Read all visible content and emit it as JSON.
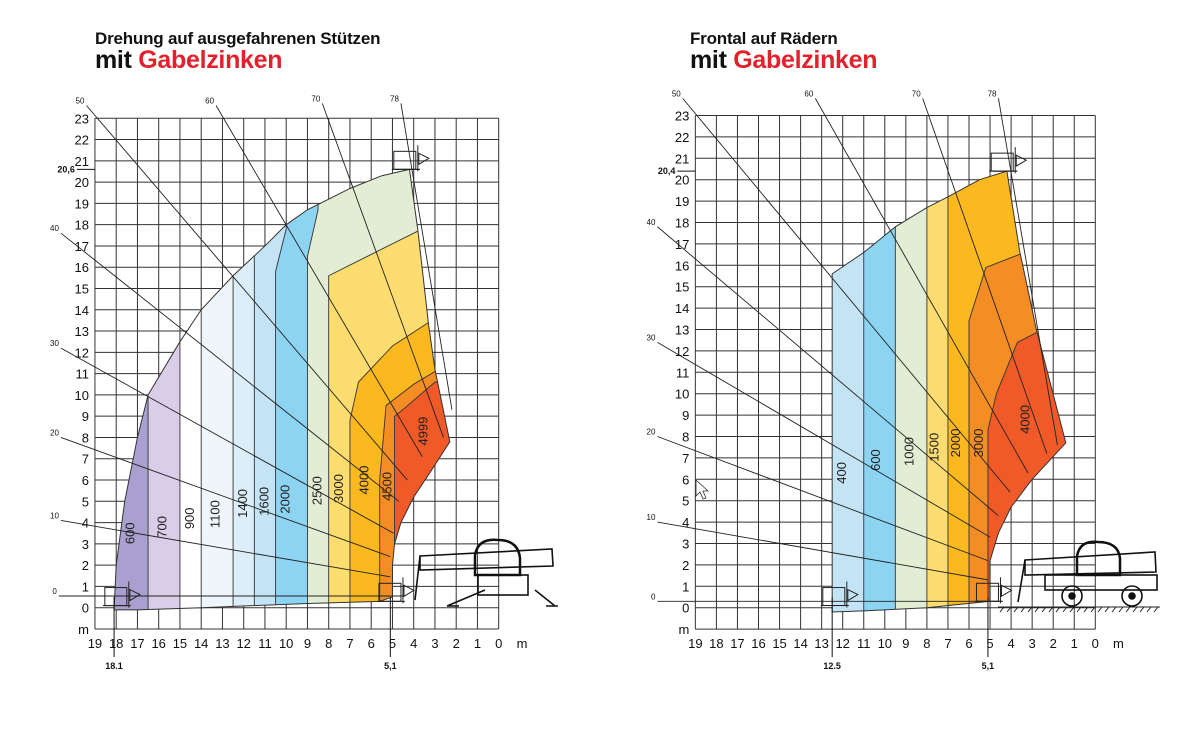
{
  "colors": {
    "highlight": "#e3212c",
    "grid": "#333333",
    "text": "#111111"
  },
  "charts": [
    {
      "title": "Drehung auf ausgefahrenen Stützen",
      "subtitle_prefix": "mit",
      "subtitle_highlight": "Gabelzinken",
      "type": "load-chart",
      "unit": "m",
      "x_ticks": [
        "19",
        "18",
        "17",
        "16",
        "15",
        "14",
        "13",
        "12",
        "11",
        "10",
        "9",
        "8",
        "7",
        "6",
        "5",
        "4",
        "3",
        "2",
        "1",
        "0"
      ],
      "y_ticks": [
        "0",
        "1",
        "2",
        "3",
        "4",
        "5",
        "6",
        "7",
        "8",
        "9",
        "10",
        "11",
        "12",
        "13",
        "14",
        "15",
        "16",
        "17",
        "18",
        "19",
        "20",
        "21",
        "22",
        "23"
      ],
      "xlim": [
        19,
        0
      ],
      "ylim": [
        -1,
        23
      ],
      "max_height": 20.6,
      "max_height_label": "20,6",
      "max_reach": 18.1,
      "max_reach_label": "18.1",
      "min_reach": 5.1,
      "min_reach_label": "5,1",
      "boom_angles": [
        "0",
        "10",
        "20",
        "30",
        "40",
        "50",
        "60",
        "70",
        "78"
      ],
      "envelope": [
        [
          18.1,
          -0.1
        ],
        [
          18.0,
          2
        ],
        [
          17.6,
          5
        ],
        [
          17.0,
          8
        ],
        [
          16.5,
          10
        ],
        [
          15.0,
          12.5
        ],
        [
          14.0,
          14
        ],
        [
          12.5,
          15.6
        ],
        [
          11.0,
          17
        ],
        [
          10.0,
          18
        ],
        [
          9.0,
          18.7
        ],
        [
          7.0,
          19.7
        ],
        [
          5.5,
          20.3
        ],
        [
          4.2,
          20.6
        ],
        [
          3.8,
          17.7
        ],
        [
          3.3,
          13.3
        ],
        [
          3.0,
          11.2
        ],
        [
          2.3,
          7.8
        ],
        [
          3.2,
          6.4
        ],
        [
          4.0,
          5.2
        ],
        [
          4.6,
          4.0
        ],
        [
          4.9,
          3.0
        ],
        [
          5.0,
          2.0
        ],
        [
          5.0,
          0.5
        ],
        [
          5.6,
          0.3
        ],
        [
          9.0,
          0.2
        ],
        [
          14.0,
          0.0
        ],
        [
          17.0,
          -0.1
        ]
      ],
      "zones": [
        {
          "capacity": "600",
          "color": "#aaa0cf",
          "region": [
            [
              25,
              -2
            ],
            [
              25,
              26
            ],
            [
              -2,
              26
            ],
            [
              -2,
              -2
            ]
          ]
        },
        {
          "capacity": "700",
          "color": "#d9cde7",
          "region": [
            [
              16.5,
              -2
            ],
            [
              16.5,
              26
            ],
            [
              -2,
              26
            ],
            [
              -2,
              -2
            ]
          ]
        },
        {
          "capacity": "900",
          "color": "#ffffff",
          "region": [
            [
              15,
              -2
            ],
            [
              15,
              26
            ],
            [
              -2,
              26
            ],
            [
              -2,
              -2
            ]
          ]
        },
        {
          "capacity": "1100",
          "color": "#eef6fc",
          "region": [
            [
              14,
              -2
            ],
            [
              14,
              26
            ],
            [
              -2,
              26
            ],
            [
              -2,
              -2
            ]
          ]
        },
        {
          "capacity": "1400",
          "color": "#dcEEf9",
          "region": [
            [
              12.5,
              -2
            ],
            [
              12.5,
              26
            ],
            [
              -2,
              26
            ],
            [
              -2,
              -2
            ]
          ]
        },
        {
          "capacity": "1600",
          "color": "#c4e4f6",
          "region": [
            [
              11.5,
              -2
            ],
            [
              11.5,
              26
            ],
            [
              -2,
              26
            ],
            [
              -2,
              -2
            ]
          ]
        },
        {
          "capacity": "2000",
          "color": "#8dd3f2",
          "region": [
            [
              10.5,
              -2
            ],
            [
              10.5,
              15.8
            ],
            [
              10,
              17.8
            ],
            [
              10,
              26
            ],
            [
              -2,
              26
            ],
            [
              -2,
              -2
            ]
          ]
        },
        {
          "capacity": "2500",
          "color": "#e2edd4",
          "region": [
            [
              9,
              -2
            ],
            [
              9,
              16.5
            ],
            [
              8.5,
              18.7
            ],
            [
              8.5,
              26
            ],
            [
              -2,
              26
            ],
            [
              -2,
              -2
            ]
          ]
        },
        {
          "capacity": "3000",
          "color": "#fddc70",
          "region": [
            [
              8,
              -2
            ],
            [
              8,
              15.6
            ],
            [
              6,
              16.6
            ],
            [
              3.8,
              17.7
            ],
            [
              2,
              18.5
            ],
            [
              -2,
              18.5
            ],
            [
              -2,
              -2
            ]
          ]
        },
        {
          "capacity": "4000",
          "color": "#fbb81f",
          "region": [
            [
              7,
              -2
            ],
            [
              7,
              8.8
            ],
            [
              6.6,
              10.6
            ],
            [
              5,
              12.3
            ],
            [
              3.3,
              13.4
            ],
            [
              2,
              14
            ],
            [
              -2,
              14
            ],
            [
              -2,
              -2
            ]
          ]
        },
        {
          "capacity": "4500",
          "color": "#f38d24",
          "region": [
            [
              5.6,
              -2
            ],
            [
              5.6,
              6
            ],
            [
              5.3,
              9.5
            ],
            [
              4,
              10.5
            ],
            [
              3,
              11.1
            ],
            [
              -2,
              11.1
            ],
            [
              -2,
              -2
            ]
          ]
        },
        {
          "capacity": "4999",
          "color": "#ef5a28",
          "region": [
            [
              4.9,
              -2
            ],
            [
              4.9,
              9
            ],
            [
              4.4,
              9.4
            ],
            [
              3,
              10.6
            ],
            [
              -2,
              10.6
            ],
            [
              -2,
              -2
            ]
          ]
        }
      ]
    },
    {
      "title": "Frontal auf Rädern",
      "subtitle_prefix": "mit",
      "subtitle_highlight": "Gabelzinken",
      "type": "load-chart",
      "unit": "m",
      "x_ticks": [
        "19",
        "18",
        "17",
        "16",
        "15",
        "14",
        "13",
        "12",
        "11",
        "10",
        "9",
        "8",
        "7",
        "6",
        "5",
        "4",
        "3",
        "2",
        "1",
        "0"
      ],
      "y_ticks": [
        "0",
        "1",
        "2",
        "3",
        "4",
        "5",
        "6",
        "7",
        "8",
        "9",
        "10",
        "11",
        "12",
        "13",
        "14",
        "15",
        "16",
        "17",
        "18",
        "19",
        "20",
        "21",
        "22",
        "23"
      ],
      "xlim": [
        19,
        0
      ],
      "ylim": [
        -1,
        23
      ],
      "max_height": 20.4,
      "max_height_label": "20,4",
      "max_reach": 12.5,
      "max_reach_label": "12.5",
      "min_reach": 5.1,
      "min_reach_label": "5,1",
      "boom_angles": [
        "0",
        "10",
        "20",
        "30",
        "40",
        "50",
        "60",
        "70",
        "78"
      ],
      "envelope": [
        [
          12.5,
          -0.2
        ],
        [
          12.5,
          15.6
        ],
        [
          11,
          16.6
        ],
        [
          9.5,
          17.8
        ],
        [
          8,
          18.7
        ],
        [
          7,
          19.2
        ],
        [
          5.5,
          20
        ],
        [
          4.2,
          20.4
        ],
        [
          3.6,
          16.7
        ],
        [
          2.8,
          13
        ],
        [
          1.4,
          7.7
        ],
        [
          3,
          6
        ],
        [
          4,
          4.7
        ],
        [
          4.6,
          3.5
        ],
        [
          5,
          2.2
        ],
        [
          5,
          0.3
        ],
        [
          8,
          0.0
        ],
        [
          11,
          -0.15
        ]
      ],
      "zones": [
        {
          "capacity": "400",
          "color": "#c4e4f6",
          "region": [
            [
              25,
              -2
            ],
            [
              25,
              26
            ],
            [
              -2,
              26
            ],
            [
              -2,
              -2
            ]
          ]
        },
        {
          "capacity": "600",
          "color": "#8dd3f2",
          "region": [
            [
              11,
              -2
            ],
            [
              11,
              26
            ],
            [
              -2,
              26
            ],
            [
              -2,
              -2
            ]
          ]
        },
        {
          "capacity": "1000",
          "color": "#e2edd4",
          "region": [
            [
              9.5,
              -2
            ],
            [
              9.5,
              26
            ],
            [
              -2,
              26
            ],
            [
              -2,
              -2
            ]
          ]
        },
        {
          "capacity": "1500",
          "color": "#fddc70",
          "region": [
            [
              8,
              -2
            ],
            [
              8,
              26
            ],
            [
              -2,
              26
            ],
            [
              -2,
              -2
            ]
          ]
        },
        {
          "capacity": "2000",
          "color": "#fbb81f",
          "region": [
            [
              7,
              -2
            ],
            [
              7,
              26
            ],
            [
              -2,
              26
            ],
            [
              -2,
              -2
            ]
          ]
        },
        {
          "capacity": "3000",
          "color": "#f38d24",
          "region": [
            [
              6,
              -2
            ],
            [
              6,
              13.4
            ],
            [
              5.2,
              15.9
            ],
            [
              3.1,
              16.7
            ],
            [
              -2,
              16.7
            ],
            [
              -2,
              -2
            ]
          ]
        },
        {
          "capacity": "4000",
          "color": "#ef5a28",
          "region": [
            [
              5.1,
              -2
            ],
            [
              5.1,
              8.3
            ],
            [
              4.7,
              10
            ],
            [
              3.7,
              12.4
            ],
            [
              2.3,
              13.1
            ],
            [
              -2,
              13.1
            ],
            [
              -2,
              -2
            ]
          ]
        }
      ]
    }
  ]
}
